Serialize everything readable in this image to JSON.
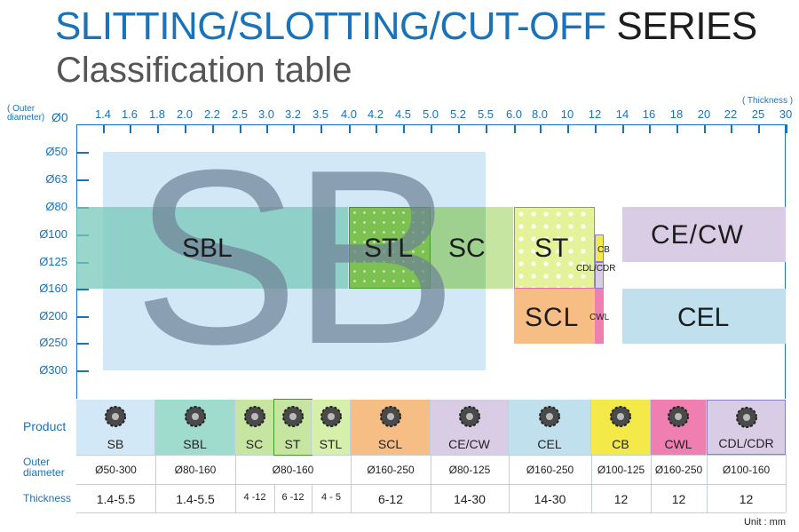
{
  "title": {
    "part1": "SLITTING/SLOTTING/CUT-OFF",
    "part2": "SERIES"
  },
  "subtitle": "Classification table",
  "axis": {
    "outer_diameter_label": "( Outer\ndiameter)",
    "origin_label": "Ø0",
    "thickness_label": "( Thickness )",
    "thickness_ticks": [
      "1.4",
      "1.6",
      "1.8",
      "2.0",
      "2.2",
      "2.5",
      "3.0",
      "3.2",
      "3.5",
      "4.0",
      "4.2",
      "4.5",
      "5.0",
      "5.2",
      "5.5",
      "6.0",
      "8.0",
      "10",
      "12",
      "14",
      "16",
      "18",
      "20",
      "22",
      "25",
      "30"
    ],
    "diameter_ticks": [
      "Ø50",
      "Ø63",
      "Ø80",
      "Ø100",
      "Ø125",
      "Ø160",
      "Ø200",
      "Ø250",
      "Ø300"
    ]
  },
  "regions": {
    "big_letters": "SB",
    "sbl": "SBL",
    "stl": "STL",
    "sc": "SC",
    "st": "ST",
    "cb": "CB",
    "cdl_cdr": "CDL/CDR",
    "scl": "SCL",
    "cwl": "CWL",
    "ce_cw": "CE/CW",
    "cel": "CEL"
  },
  "colors": {
    "sb": "#d3e8f7",
    "sbl": "#8fd0c3",
    "stl": "#86c75a",
    "sc": "#c6e5a0",
    "st": "#e6f4a0",
    "scl": "#f6bd85",
    "cwl": "#ee7fb0",
    "ce_cw": "#d9cde6",
    "cel": "#bfe0ec",
    "cb": "#f3ea4a",
    "axis": "#1a73b8"
  },
  "table": {
    "row_labels": {
      "product": "Product",
      "outer_diameter": "Outer\ndiameter",
      "thickness": "Thickness"
    },
    "products": [
      {
        "name": "SB",
        "diameter": "Ø50-300",
        "thickness": "1.4-5.5"
      },
      {
        "name": "SBL",
        "diameter": "Ø80-160",
        "thickness": "1.4-5.5"
      },
      {
        "name": "SC",
        "diameter": "",
        "thickness": "4 -12"
      },
      {
        "name": "ST",
        "diameter": "Ø80-160",
        "thickness": "6 -12"
      },
      {
        "name": "STL",
        "diameter": "",
        "thickness": "4 - 5"
      },
      {
        "name": "SCL",
        "diameter": "Ø160-250",
        "thickness": "6-12"
      },
      {
        "name": "CE/CW",
        "diameter": "Ø80-125",
        "thickness": "14-30"
      },
      {
        "name": "CEL",
        "diameter": "Ø160-250",
        "thickness": "14-30"
      },
      {
        "name": "CB",
        "diameter": "Ø100-125",
        "thickness": "12"
      },
      {
        "name": "CWL",
        "diameter": "Ø160-250",
        "thickness": "12"
      },
      {
        "name": "CDL/CDR",
        "diameter": "Ø100-160",
        "thickness": "12"
      }
    ]
  },
  "unit": "Unit : mm"
}
